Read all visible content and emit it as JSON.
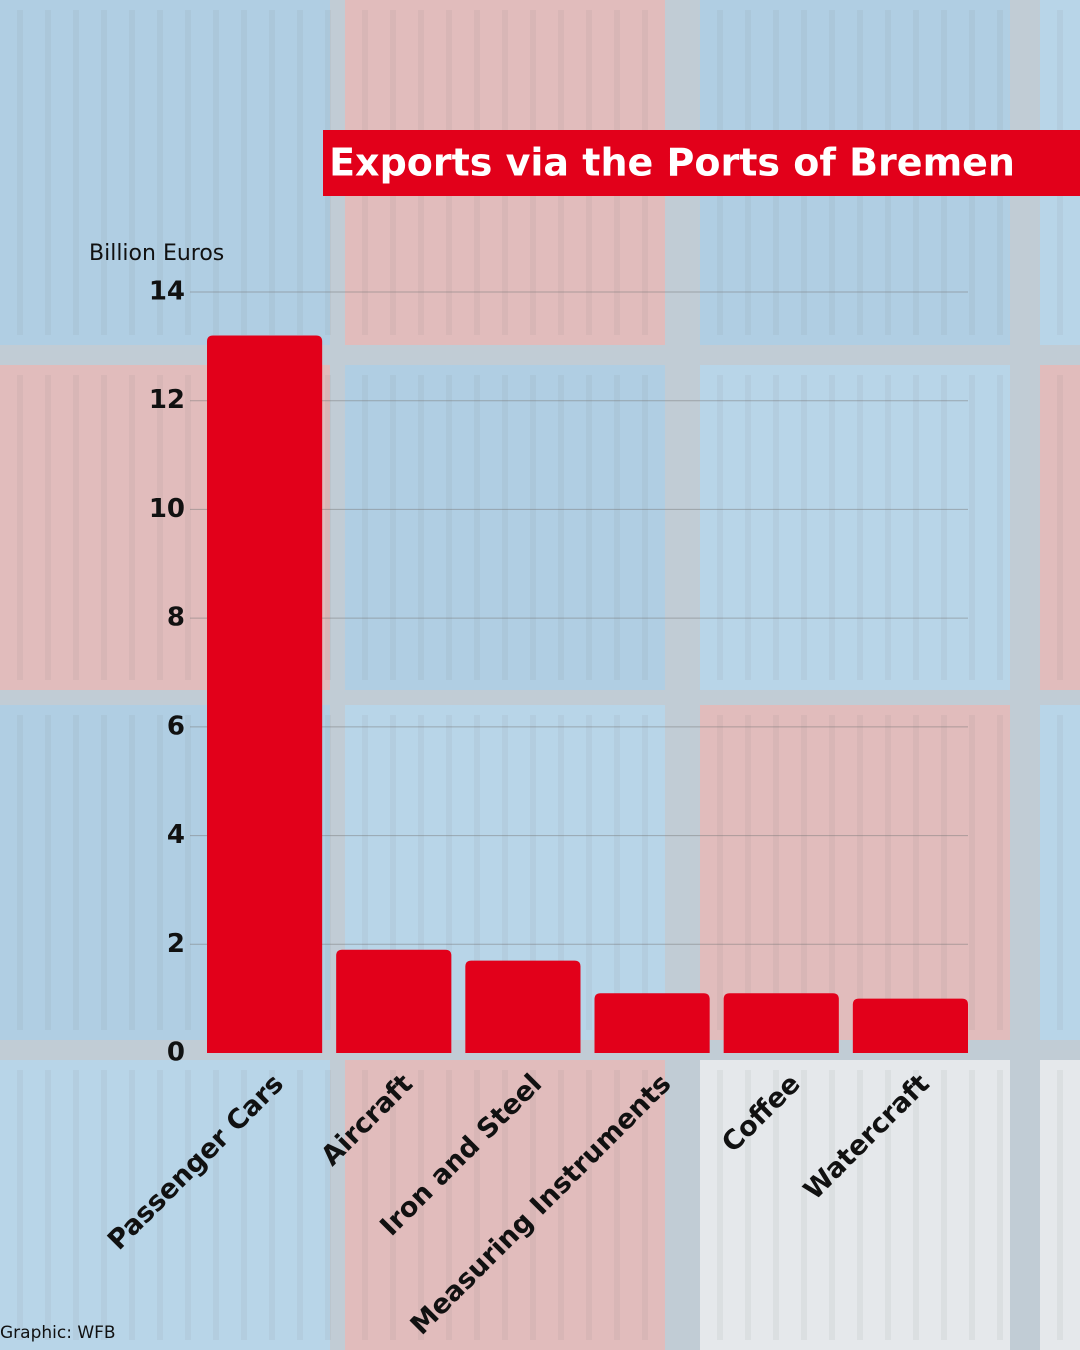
{
  "chart_data": {
    "type": "bar",
    "title": "Exports via the Ports of Bremen",
    "y_label": "Billion Euros",
    "source": "Graphic: WFB",
    "categories": [
      "Passenger Cars",
      "Aircraft",
      "Iron and Steel",
      "Measuring Instruments",
      "Coffee",
      "Watercraft"
    ],
    "values": [
      13.2,
      1.9,
      1.7,
      1.1,
      1.1,
      1.0
    ],
    "color": "#e2001a",
    "ylim": [
      0,
      14
    ],
    "yticks": [
      0,
      2,
      4,
      6,
      8,
      10,
      12,
      14
    ],
    "grid": true
  }
}
